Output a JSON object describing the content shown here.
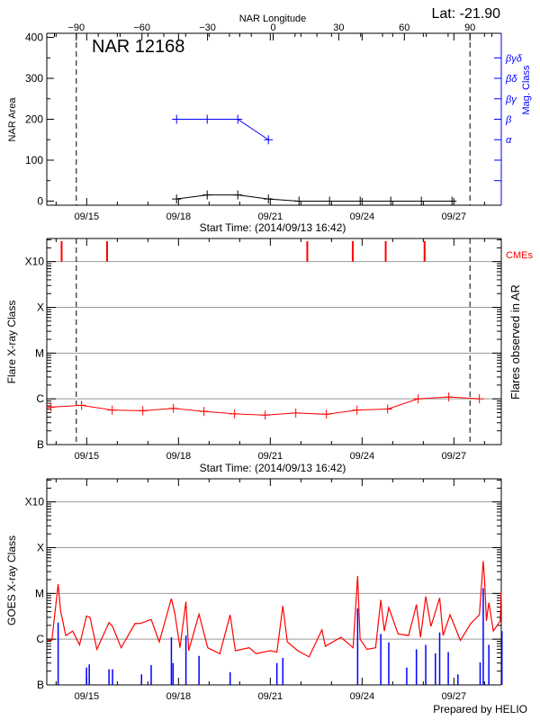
{
  "header": {
    "lat_label": "Lat: -21.90",
    "footer": "Prepared by HELIO"
  },
  "colors": {
    "axis": "#000000",
    "mag": "#0000ff",
    "flare": "#ff0000",
    "grid": "#999999",
    "goes_long": "#ff0000",
    "goes_short": "#0000ff"
  },
  "chart_data": [
    {
      "type": "line",
      "panel": "nar-area",
      "title": "NAR 12168",
      "ylabel": "NAR Area",
      "ylim": [
        -10,
        410
      ],
      "yticks": [
        0,
        100,
        200,
        300,
        400
      ],
      "xlabel": "Start Time: (2014/09/13 16:42)",
      "start_time": "2014-09-13T16:42",
      "date_ticks": [
        "09/15",
        "09/18",
        "09/21",
        "09/24",
        "09/27"
      ],
      "top_axis": {
        "label": "NAR Longitude",
        "ticks": [
          -90,
          -60,
          -30,
          0,
          30,
          60,
          90
        ]
      },
      "limb_longitudes": [
        -90,
        90
      ],
      "right_axis": {
        "label": "Mag. Class",
        "color": "#0000ff",
        "classes": [
          {
            "name": "α",
            "value": 150
          },
          {
            "name": "β",
            "value": 200
          },
          {
            "name": "βγ",
            "value": 250
          },
          {
            "name": "βδ",
            "value": 300
          },
          {
            "name": "βγδ",
            "value": 350
          }
        ],
        "unlabeled_ticks": [
          50,
          100
        ]
      },
      "series": [
        {
          "key": "area",
          "color": "#000000",
          "x": [
            "2014-09-17T22:30",
            "2014-09-18T22:30",
            "2014-09-19T22:30",
            "2014-09-20T22:30",
            "2014-09-21T22:30",
            "2014-09-22T22:30",
            "2014-09-23T22:30",
            "2014-09-24T22:30",
            "2014-09-25T22:30",
            "2014-09-26T22:30"
          ],
          "y": [
            5,
            15,
            15,
            5,
            0,
            0,
            0,
            0,
            0,
            0
          ]
        },
        {
          "key": "mag_class",
          "color": "#0000ff",
          "x": [
            "2014-09-17T22:30",
            "2014-09-18T22:30",
            "2014-09-19T22:30",
            "2014-09-20T22:30"
          ],
          "classes": [
            "β",
            "β",
            "β",
            "α"
          ],
          "y": [
            200,
            200,
            200,
            150
          ]
        }
      ]
    },
    {
      "type": "line",
      "panel": "flare-class",
      "ylabel": "Flare X-ray Class",
      "right_label": "Flares observed in AR",
      "ylog": true,
      "ylim": [
        1e-07,
        0.0032
      ],
      "yclass_ticks": [
        {
          "label": "B",
          "flux": 1e-07
        },
        {
          "label": "C",
          "flux": 1e-06
        },
        {
          "label": "M",
          "flux": 1e-05
        },
        {
          "label": "X",
          "flux": 0.0001
        },
        {
          "label": "X10",
          "flux": 0.001
        }
      ],
      "xlabel": "Start Time: (2014/09/13 16:42)",
      "date_ticks": [
        "09/15",
        "09/18",
        "09/21",
        "09/24",
        "09/27"
      ],
      "grid": true,
      "limb_longitudes": [
        -90,
        90
      ],
      "series": [
        {
          "key": "flares",
          "color": "#ff0000",
          "x": [
            "2014-09-13T20:00",
            "2014-09-14T20:00",
            "2014-09-15T20:00",
            "2014-09-16T20:00",
            "2014-09-17T20:00",
            "2014-09-18T20:00",
            "2014-09-19T20:00",
            "2014-09-20T20:00",
            "2014-09-21T20:00",
            "2014-09-22T20:00",
            "2014-09-23T20:00",
            "2014-09-24T20:00",
            "2014-09-25T20:00",
            "2014-09-26T20:00",
            "2014-09-27T20:00"
          ],
          "y": [
            6.6e-07,
            7.2e-07,
            5.7e-07,
            5.5e-07,
            6.2e-07,
            5.3e-07,
            4.7e-07,
            4.4e-07,
            4.9e-07,
            4.6e-07,
            5.7e-07,
            6e-07,
            1e-06,
            1.1e-06,
            1e-06
          ]
        }
      ],
      "cmes": {
        "label": "CMEs",
        "color": "#ff0000",
        "times": [
          "2014-09-14T04:20",
          "2014-09-15T16:00",
          "2014-09-22T05:00",
          "2014-09-23T16:40",
          "2014-09-24T18:30",
          "2014-09-26T01:00"
        ]
      }
    },
    {
      "type": "line",
      "panel": "goes",
      "ylabel": "GOES X-ray Class",
      "ylog": true,
      "ylim": [
        1e-07,
        0.0032
      ],
      "yclass_ticks": [
        {
          "label": "B",
          "flux": 1e-07
        },
        {
          "label": "C",
          "flux": 1e-06
        },
        {
          "label": "M",
          "flux": 1e-05
        },
        {
          "label": "X",
          "flux": 0.0001
        },
        {
          "label": "X10",
          "flux": 0.001
        }
      ],
      "date_ticks": [
        "09/15",
        "09/18",
        "09/21",
        "09/24",
        "09/27"
      ],
      "grid": true,
      "series": [
        {
          "key": "goes_long",
          "color": "#ff0000",
          "points": [
            [
              "2014-09-13T16:42",
              9.4e-07
            ],
            [
              "2014-09-13T20:40",
              9.4e-07
            ],
            [
              "2014-09-14T01:36",
              1.6e-05
            ],
            [
              "2014-09-14T03:30",
              4.2e-06
            ],
            [
              "2014-09-14T07:35",
              1.2e-06
            ],
            [
              "2014-09-14T13:00",
              1.5e-06
            ],
            [
              "2014-09-14T18:25",
              7.5e-07
            ],
            [
              "2014-09-14T23:50",
              3.2e-06
            ],
            [
              "2014-09-15T02:35",
              3e-06
            ],
            [
              "2014-09-15T08:00",
              6e-07
            ],
            [
              "2014-09-15T17:30",
              2.3e-06
            ],
            [
              "2014-09-15T20:15",
              1.9e-06
            ],
            [
              "2014-09-16T03:00",
              6.5e-07
            ],
            [
              "2014-09-16T13:55",
              2.2e-06
            ],
            [
              "2014-09-16T18:00",
              2.2e-06
            ],
            [
              "2014-09-17T02:35",
              2.7e-06
            ],
            [
              "2014-09-17T08:55",
              8.7e-07
            ],
            [
              "2014-09-17T18:25",
              7.7e-06
            ],
            [
              "2014-09-17T21:05",
              3.7e-06
            ],
            [
              "2014-09-18T01:10",
              6.5e-07
            ],
            [
              "2014-09-18T05:50",
              6.6e-06
            ],
            [
              "2014-09-18T08:00",
              5.6e-07
            ],
            [
              "2014-09-18T16:05",
              3.5e-06
            ],
            [
              "2014-09-18T22:55",
              6.5e-07
            ],
            [
              "2014-09-19T08:25",
              4.8e-07
            ],
            [
              "2014-09-19T16:30",
              3.4e-06
            ],
            [
              "2014-09-19T20:35",
              5.6e-07
            ],
            [
              "2014-09-20T07:30",
              6.5e-07
            ],
            [
              "2014-09-20T12:55",
              4.8e-07
            ],
            [
              "2014-09-20T23:50",
              5.6e-07
            ],
            [
              "2014-09-21T05:10",
              5.2e-07
            ],
            [
              "2014-09-21T09:50",
              5.3e-06
            ],
            [
              "2014-09-21T13:20",
              8.7e-07
            ],
            [
              "2014-09-21T21:30",
              5.6e-07
            ],
            [
              "2014-09-22T06:25",
              4.1e-07
            ],
            [
              "2014-09-22T16:30",
              1.6e-06
            ],
            [
              "2014-09-22T19:10",
              7e-07
            ],
            [
              "2014-09-23T07:25",
              1.1e-06
            ],
            [
              "2014-09-23T16:55",
              6.5e-07
            ],
            [
              "2014-09-23T20:30",
              2.4e-05
            ],
            [
              "2014-09-23T22:25",
              1e-06
            ],
            [
              "2014-09-24T03:50",
              6e-07
            ],
            [
              "2014-09-24T10:35",
              6.5e-07
            ],
            [
              "2014-09-24T14:40",
              7.2e-06
            ],
            [
              "2014-09-24T17:25",
              1.5e-06
            ],
            [
              "2014-09-24T20:55",
              4.9e-06
            ],
            [
              "2014-09-25T04:15",
              1.3e-06
            ],
            [
              "2014-09-25T12:25",
              1.2e-06
            ],
            [
              "2014-09-25T16:25",
              3.2e-06
            ],
            [
              "2014-09-25T18:35",
              5.7e-06
            ],
            [
              "2014-09-25T21:50",
              1.1e-06
            ],
            [
              "2014-09-26T01:55",
              8.6e-06
            ],
            [
              "2014-09-26T06:00",
              1.9e-06
            ],
            [
              "2014-09-26T12:50",
              8e-06
            ],
            [
              "2014-09-26T15:30",
              1.2e-06
            ],
            [
              "2014-09-26T21:00",
              3.4e-06
            ],
            [
              "2014-09-27T05:05",
              9.4e-07
            ],
            [
              "2014-09-27T13:15",
              2.2e-06
            ],
            [
              "2014-09-27T20:00",
              3.4e-06
            ],
            [
              "2014-09-27T23:00",
              5.1e-05
            ],
            [
              "2014-09-28T00:05",
              1.9e-05
            ],
            [
              "2014-09-28T01:30",
              2.5e-06
            ],
            [
              "2014-09-28T03:25",
              6.3e-06
            ],
            [
              "2014-09-28T06:55",
              1.5e-06
            ],
            [
              "2014-09-28T12:20",
              2.5e-06
            ],
            [
              "2014-09-28T13:40",
              1.05e-05
            ]
          ]
        },
        {
          "key": "goes_short",
          "color": "#0000ff",
          "spikes": [
            [
              "2014-09-14T01:36",
              2.3e-06
            ],
            [
              "2014-09-14T23:50",
              2.4e-07
            ],
            [
              "2014-09-15T02:00",
              2.8e-07
            ],
            [
              "2014-09-15T17:30",
              2.2e-07
            ],
            [
              "2014-09-15T20:15",
              2.2e-07
            ],
            [
              "2014-09-16T19:00",
              1.7e-07
            ],
            [
              "2014-09-17T02:35",
              2.7e-07
            ],
            [
              "2014-09-17T18:25",
              1.1e-06
            ],
            [
              "2014-09-17T19:45",
              3e-07
            ],
            [
              "2014-09-18T05:50",
              1.2e-06
            ],
            [
              "2014-09-18T16:05",
              4.3e-07
            ],
            [
              "2014-09-19T16:30",
              1.9e-07
            ],
            [
              "2014-09-21T05:10",
              3e-07
            ],
            [
              "2014-09-21T09:50",
              3.9e-07
            ],
            [
              "2014-09-23T20:30",
              4.7e-06
            ],
            [
              "2014-09-24T14:40",
              1.3e-06
            ],
            [
              "2014-09-24T20:55",
              8.5e-07
            ],
            [
              "2014-09-25T11:00",
              2.4e-07
            ],
            [
              "2014-09-25T18:35",
              6e-07
            ],
            [
              "2014-09-26T01:55",
              7.5e-07
            ],
            [
              "2014-09-26T09:30",
              4.9e-07
            ],
            [
              "2014-09-26T12:50",
              1.4e-06
            ],
            [
              "2014-09-26T19:35",
              5.2e-07
            ],
            [
              "2014-09-27T03:10",
              1.7e-07
            ],
            [
              "2014-09-27T20:35",
              3.1e-07
            ],
            [
              "2014-09-27T23:00",
              1.3e-05
            ],
            [
              "2014-09-28T03:25",
              7.5e-07
            ],
            [
              "2014-09-28T13:40",
              1.5e-06
            ]
          ]
        }
      ]
    }
  ]
}
